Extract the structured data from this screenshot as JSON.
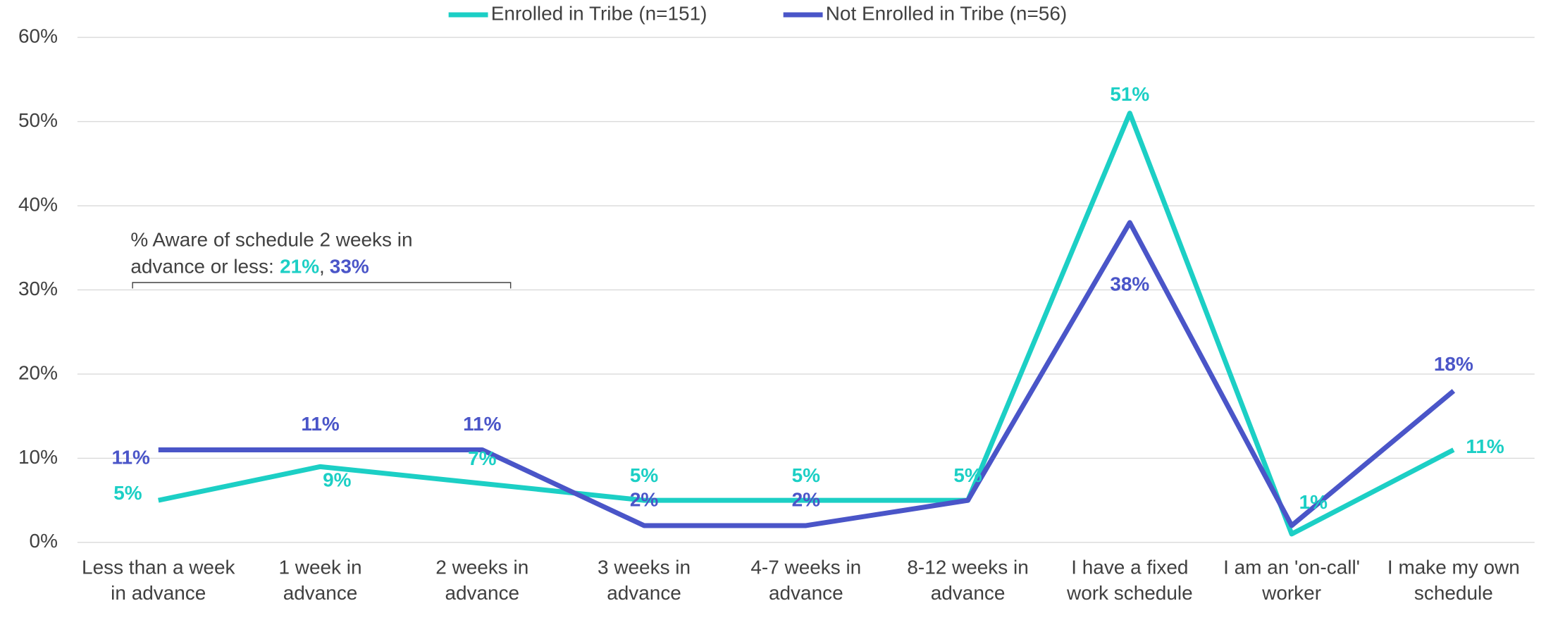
{
  "chart_data": {
    "type": "line",
    "categories": [
      "Less than a week in advance",
      "1 week in advance",
      "2 weeks in advance",
      "3 weeks in advance",
      "4-7 weeks in advance",
      "8-12 weeks in advance",
      "I have a fixed work schedule",
      "I am an 'on-call' worker",
      "I make my own schedule"
    ],
    "series": [
      {
        "name": "Enrolled in Tribe (n=151)",
        "color": "#1ccfc5",
        "values": [
          5,
          9,
          7,
          5,
          5,
          5,
          51,
          1,
          11
        ],
        "value_labels": [
          "5%",
          "9%",
          "7%",
          "5%",
          "5%",
          "5%",
          "51%",
          "1%",
          "11%"
        ]
      },
      {
        "name": "Not Enrolled in Tribe (n=56)",
        "color": "#4a55c8",
        "values": [
          11,
          11,
          11,
          2,
          2,
          5,
          38,
          2,
          18
        ],
        "value_labels": [
          "11%",
          "11%",
          "11%",
          "2%",
          "2%",
          null,
          "38%",
          null,
          "18%"
        ]
      }
    ],
    "ylim": [
      0,
      60
    ],
    "yticks": [
      {
        "value": 0,
        "label": "0%"
      },
      {
        "value": 10,
        "label": "10%"
      },
      {
        "value": 20,
        "label": "20%"
      },
      {
        "value": 30,
        "label": "30%"
      },
      {
        "value": 40,
        "label": "40%"
      },
      {
        "value": 50,
        "label": "50%"
      },
      {
        "value": 60,
        "label": "60%"
      }
    ],
    "grid": true,
    "legend": "top",
    "annotation": {
      "lines": [
        "% Aware of schedule 2 weeks in",
        "advance or less:"
      ],
      "values": [
        "21%",
        "33%"
      ],
      "separator": ","
    }
  }
}
